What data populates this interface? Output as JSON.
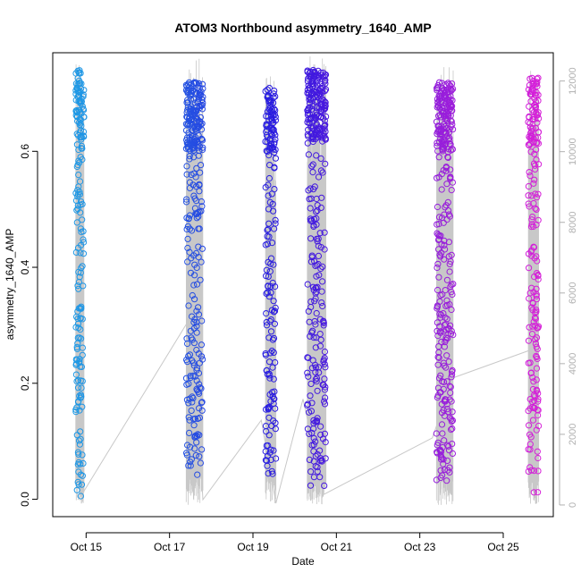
{
  "chart_data": {
    "type": "scatter",
    "title": "ATOM3 Northbound asymmetry_1640_AMP",
    "xlabel": "Date",
    "ylabel": "asymmetry_1640_AMP",
    "x_ticks": [
      "Oct 15",
      "Oct 17",
      "Oct 19",
      "Oct 21",
      "Oct 23",
      "Oct 25"
    ],
    "x_tick_values": [
      15,
      17,
      19,
      21,
      23,
      25
    ],
    "xlim": [
      14.2,
      26.2
    ],
    "y_ticks": [
      "0.0",
      "0.2",
      "0.4",
      "0.6"
    ],
    "y_tick_values": [
      0.0,
      0.2,
      0.4,
      0.6
    ],
    "ylim": [
      -0.03,
      0.77
    ],
    "y2_ticks": [
      "0",
      "2000",
      "4000",
      "6000",
      "8000",
      "10000",
      "12000"
    ],
    "y2_tick_values": [
      0,
      2000,
      4000,
      6000,
      8000,
      10000,
      12000
    ],
    "y2lim": [
      -330,
      12800
    ],
    "line_color": "#c8c8c8",
    "point_color_start": "#1da8e6",
    "point_color_mid": "#2a18e0",
    "point_color_end": "#e020d8",
    "line_series": [
      [
        14.8,
        150
      ],
      [
        14.9,
        300
      ],
      [
        17.55,
        5400
      ],
      [
        17.8,
        150
      ],
      [
        19.2,
        2400
      ],
      [
        19.55,
        50
      ],
      [
        20.2,
        3000
      ],
      [
        20.7,
        300
      ],
      [
        23.3,
        1900
      ],
      [
        23.8,
        3600
      ],
      [
        25.8,
        4450
      ]
    ],
    "clusters": [
      {
        "x_start": 14.75,
        "x_end": 14.95,
        "count": 190,
        "y_range": [
          0.0,
          0.74
        ],
        "line_y2_range": [
          0,
          12500
        ]
      },
      {
        "x_start": 17.4,
        "x_end": 17.8,
        "count": 310,
        "y_range": [
          0.04,
          0.72
        ],
        "line_y2_range": [
          0,
          12700
        ]
      },
      {
        "x_start": 19.3,
        "x_end": 19.55,
        "count": 190,
        "y_range": [
          0.04,
          0.71
        ],
        "line_y2_range": [
          0,
          12300
        ]
      },
      {
        "x_start": 20.3,
        "x_end": 20.75,
        "count": 340,
        "y_range": [
          0.02,
          0.74
        ],
        "line_y2_range": [
          0,
          12700
        ]
      },
      {
        "x_start": 23.4,
        "x_end": 23.8,
        "count": 330,
        "y_range": [
          0.03,
          0.72
        ],
        "line_y2_range": [
          0,
          12400
        ]
      },
      {
        "x_start": 25.6,
        "x_end": 25.85,
        "count": 200,
        "y_range": [
          0.01,
          0.73
        ],
        "line_y2_range": [
          0,
          12500
        ]
      }
    ]
  }
}
